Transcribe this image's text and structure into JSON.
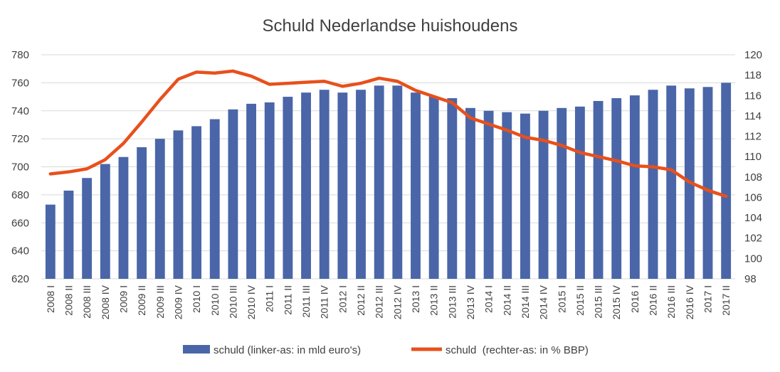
{
  "chart_data": {
    "type": "bar",
    "title": "Schuld Nederlandse huishoudens",
    "categories": [
      "2008 I",
      "2008 II",
      "2008 III",
      "2008 IV",
      "2009 I",
      "2009 II",
      "2009 III",
      "2009 IV",
      "2010 I",
      "2010 II",
      "2010 III",
      "2010 IV",
      "2011 I",
      "2011 II",
      "2011 III",
      "2011 IV",
      "2012 I",
      "2012 II",
      "2012 III",
      "2012 IV",
      "2013 I",
      "2013 II",
      "2013 III",
      "2013 IV",
      "2014 I",
      "2014 II",
      "2014 III",
      "2014 IV",
      "2015 I",
      "2015 II",
      "2015 III",
      "2015 IV",
      "2016 I",
      "2016 II",
      "2016 III",
      "2016 IV",
      "2017 I",
      "2017 II"
    ],
    "series": [
      {
        "name": "schuld (linker-as: in mld euro's)",
        "type": "bar",
        "axis": "left",
        "color": "#4a66a8",
        "values": [
          673,
          683,
          692,
          702,
          707,
          714,
          720,
          726,
          729,
          734,
          741,
          745,
          746,
          750,
          753,
          755,
          753,
          755,
          758,
          758,
          753,
          750,
          749,
          742,
          740,
          739,
          738,
          740,
          742,
          743,
          747,
          749,
          751,
          755,
          758,
          756,
          757,
          760
        ]
      },
      {
        "name": "schuld  (rechter-as: in % BBP)",
        "type": "line",
        "axis": "right",
        "color": "#e8501c",
        "values": [
          108.3,
          108.5,
          108.8,
          109.7,
          111.3,
          113.4,
          115.6,
          117.6,
          118.3,
          118.2,
          118.4,
          117.9,
          117.1,
          117.2,
          117.3,
          117.4,
          116.9,
          117.2,
          117.7,
          117.4,
          116.5,
          115.9,
          115.3,
          113.8,
          113.2,
          112.6,
          111.9,
          111.6,
          111.1,
          110.4,
          110.0,
          109.6,
          109.1,
          109.0,
          108.7,
          107.5,
          106.7,
          106.1
        ]
      }
    ],
    "y_left": {
      "min": 620,
      "max": 780,
      "ticks": [
        "620",
        "640",
        "660",
        "680",
        "700",
        "720",
        "740",
        "760",
        "780"
      ]
    },
    "y_right": {
      "min": 98,
      "max": 120,
      "ticks": [
        "98",
        "100",
        "102",
        "104",
        "106",
        "108",
        "110",
        "112",
        "114",
        "116",
        "118",
        "120"
      ]
    },
    "grid": true,
    "legend_position": "bottom"
  }
}
